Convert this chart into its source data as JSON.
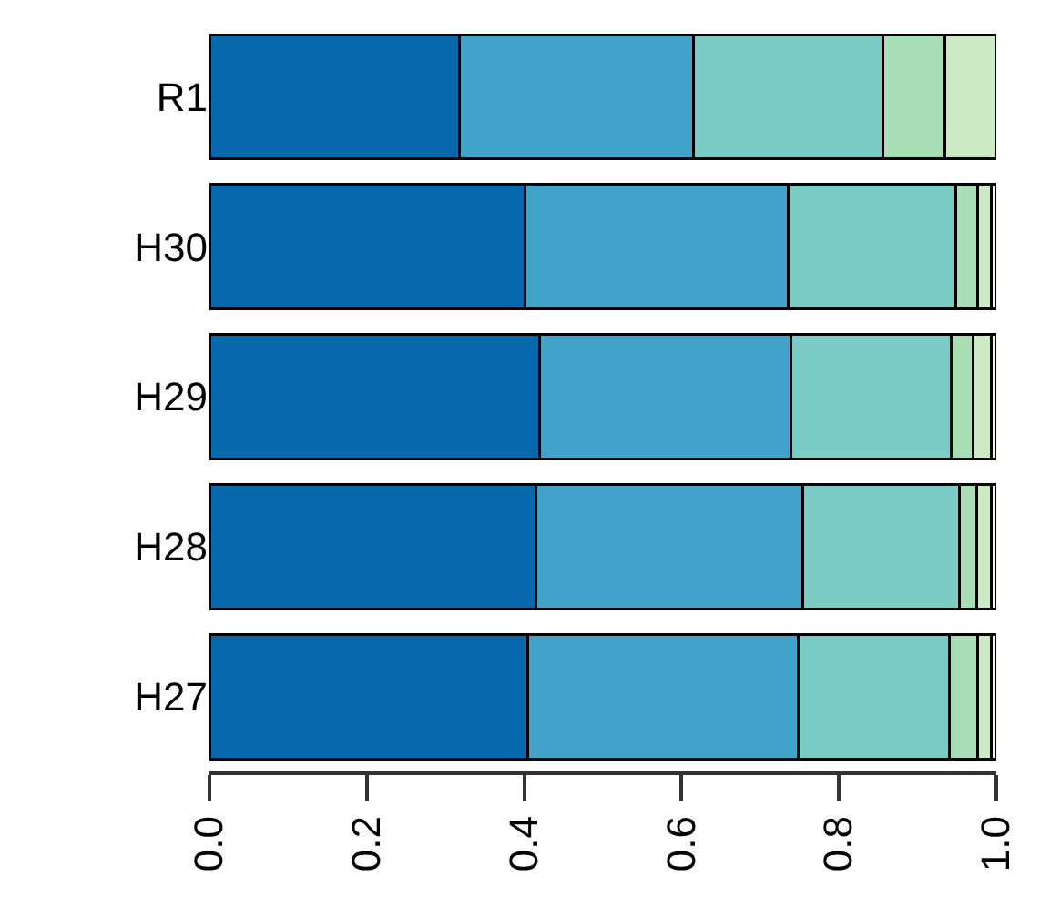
{
  "chart_data": {
    "type": "bar",
    "orientation": "horizontal",
    "stacked": true,
    "categories": [
      "R1",
      "H30",
      "H29",
      "H28",
      "H27"
    ],
    "series": [
      {
        "color": "#0868ac",
        "values": [
          0.318,
          0.401,
          0.419,
          0.415,
          0.405
        ]
      },
      {
        "color": "#43a2ca",
        "values": [
          0.297,
          0.334,
          0.32,
          0.339,
          0.343
        ]
      },
      {
        "color": "#7bccc4",
        "values": [
          0.241,
          0.214,
          0.204,
          0.199,
          0.192
        ]
      },
      {
        "color": "#a8ddb5",
        "values": [
          0.079,
          0.027,
          0.027,
          0.022,
          0.036
        ]
      },
      {
        "color": "#ccebc5",
        "values": [
          0.065,
          0.018,
          0.024,
          0.019,
          0.018
        ]
      },
      {
        "color": "#f0f9e8",
        "values": [
          null,
          0.006,
          0.006,
          0.006,
          0.006
        ]
      }
    ],
    "xlim": [
      0,
      1
    ],
    "xticks": [
      {
        "value": 0,
        "label": "0.0"
      },
      {
        "value": 0.2,
        "label": "0.2"
      },
      {
        "value": 0.4,
        "label": "0.4"
      },
      {
        "value": 0.6,
        "label": "0.6"
      },
      {
        "value": 0.8,
        "label": "0.8"
      },
      {
        "value": 1,
        "label": "1.0"
      }
    ]
  }
}
